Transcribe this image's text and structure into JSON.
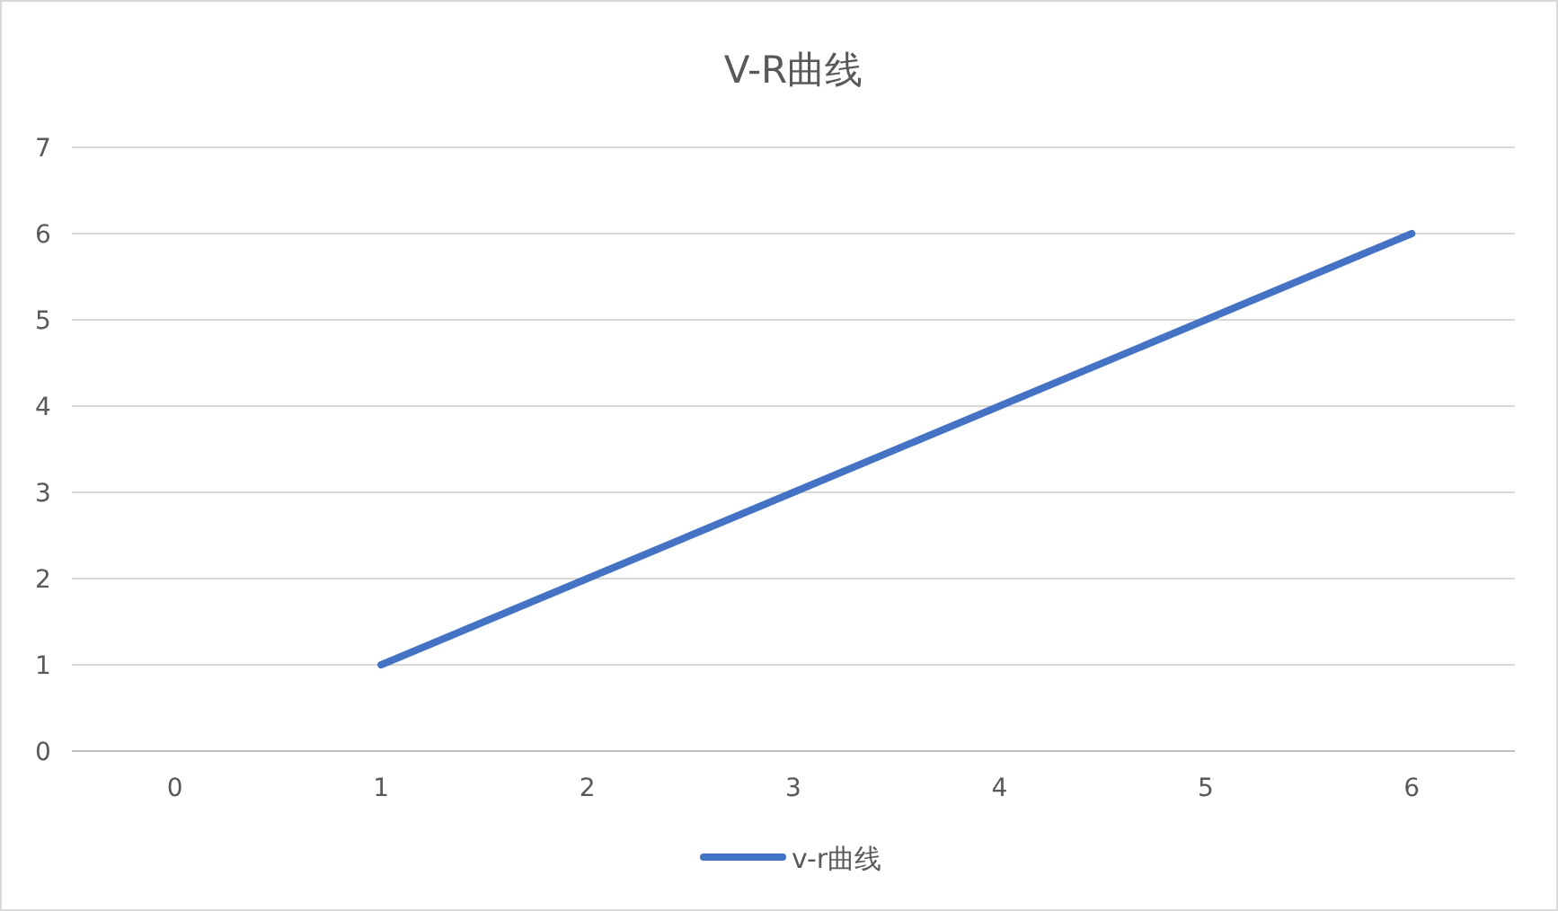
{
  "chart_data": {
    "type": "line",
    "title": "V-R曲线",
    "categories": [
      "0",
      "1",
      "2",
      "3",
      "4",
      "5",
      "6"
    ],
    "series": [
      {
        "name": "v-r曲线",
        "color": "#4472c4",
        "values": [
          null,
          1,
          2,
          3,
          4,
          5,
          6
        ]
      }
    ],
    "ylim": [
      0,
      7
    ],
    "yticks": [
      0,
      1,
      2,
      3,
      4,
      5,
      6,
      7
    ],
    "grid": "y",
    "legend": "bottom",
    "line_style": "solid"
  }
}
